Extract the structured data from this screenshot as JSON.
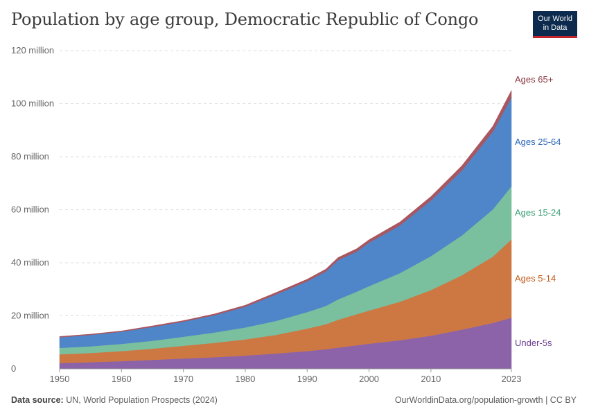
{
  "title": "Population by age group, Democratic Republic of Congo",
  "logo": {
    "line1": "Our World",
    "line2": "in Data"
  },
  "footer": {
    "source_label": "Data source:",
    "source_text": "UN, World Population Prospects (2024)",
    "url": "OurWorldinData.org/population-growth | CC BY"
  },
  "chart_data": {
    "type": "area",
    "stacked": true,
    "x_ticks": [
      1950,
      1960,
      1970,
      1980,
      1990,
      2000,
      2010,
      2023
    ],
    "x_tick_labels": [
      "1950",
      "1960",
      "1970",
      "1980",
      "1990",
      "2000",
      "2010",
      "2023"
    ],
    "xlim": [
      1950,
      2023
    ],
    "y_ticks": [
      0,
      20,
      40,
      60,
      80,
      100,
      120
    ],
    "y_tick_labels": [
      "0",
      "20 million",
      "40 million",
      "60 million",
      "80 million",
      "100 million",
      "120 million"
    ],
    "ylim": [
      0,
      120
    ],
    "y_unit": "million",
    "grid": "horizontal dashed",
    "legend": "inline labels at right",
    "x": [
      1950,
      1955,
      1960,
      1965,
      1970,
      1975,
      1980,
      1985,
      1990,
      1993,
      1995,
      1998,
      2000,
      2005,
      2010,
      2015,
      2020,
      2023
    ],
    "series": [
      {
        "name": "Under-5s",
        "color": "#8c63a8",
        "label_color": "#6b3d8e",
        "values": [
          2.2,
          2.5,
          2.9,
          3.4,
          3.9,
          4.4,
          5.0,
          5.8,
          6.7,
          7.4,
          8.0,
          8.9,
          9.5,
          10.8,
          12.5,
          14.8,
          17.3,
          19.3
        ]
      },
      {
        "name": "Ages 5-14",
        "color": "#cd7842",
        "label_color": "#c25a1a",
        "values": [
          3.3,
          3.5,
          3.8,
          4.2,
          4.8,
          5.4,
          6.1,
          7.0,
          8.5,
          9.4,
          10.5,
          11.7,
          12.5,
          14.5,
          17.2,
          20.5,
          25.0,
          29.5
        ]
      },
      {
        "name": "Ages 15-24",
        "color": "#7abf9e",
        "label_color": "#3a9e75",
        "values": [
          2.4,
          2.5,
          2.7,
          3.0,
          3.4,
          3.9,
          4.5,
          5.3,
          6.2,
          6.9,
          7.7,
          8.5,
          9.2,
          10.8,
          12.8,
          15.0,
          17.8,
          20.0
        ]
      },
      {
        "name": "Ages 25-64",
        "color": "#4f86c9",
        "label_color": "#2a66b8",
        "values": [
          4.0,
          4.3,
          4.6,
          5.2,
          5.7,
          6.5,
          7.8,
          10.0,
          11.6,
          13.0,
          14.8,
          15.1,
          16.4,
          18.0,
          21.0,
          24.5,
          29.3,
          33.5
        ]
      },
      {
        "name": "Ages 65+",
        "color": "#a8565f",
        "label_color": "#8a3640",
        "values": [
          0.3,
          0.3,
          0.3,
          0.4,
          0.4,
          0.5,
          0.6,
          0.7,
          0.8,
          0.9,
          1.0,
          1.1,
          1.1,
          1.3,
          1.5,
          1.8,
          2.1,
          2.7
        ]
      }
    ]
  }
}
